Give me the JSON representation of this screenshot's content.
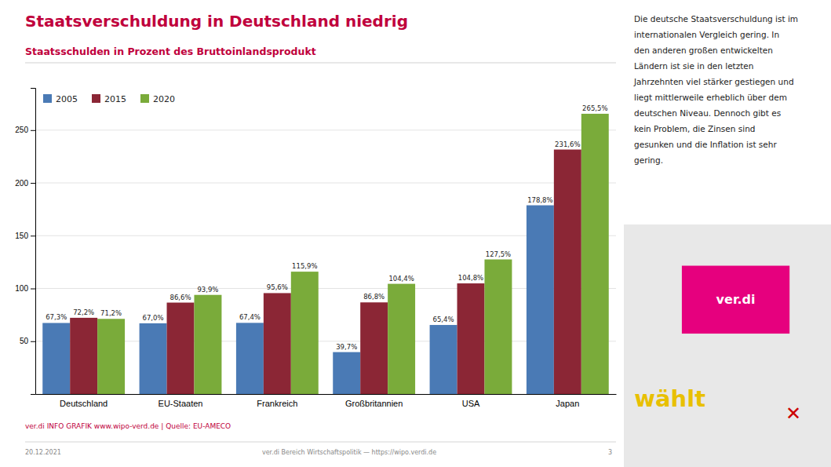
{
  "chart_data": {
    "type": "bar",
    "title": "Staatsverschuldung in Deutschland niedrig",
    "subtitle": "Staatsschulden in Prozent des Bruttoinlandsprodukt",
    "categories": [
      "Deutschland",
      "EU-Staaten",
      "Frankreich",
      "Großbritannien",
      "USA",
      "Japan"
    ],
    "series": [
      {
        "name": "2005",
        "color": "#4a7ab5",
        "values": [
          67.3,
          67.0,
          67.4,
          39.7,
          65.4,
          178.8
        ],
        "value_labels": [
          "67,3%",
          "67,0%",
          "67,4%",
          "39,7%",
          "65,4%",
          "178,8%"
        ]
      },
      {
        "name": "2015",
        "color": "#8b2635",
        "values": [
          72.2,
          86.6,
          95.6,
          86.8,
          104.8,
          231.6
        ],
        "value_labels": [
          "72,2%",
          "86,6%",
          "95,6%",
          "86,8%",
          "104,8%",
          "231,6%"
        ]
      },
      {
        "name": "2020",
        "color": "#7aab3a",
        "values": [
          71.2,
          93.9,
          115.9,
          104.4,
          127.5,
          265.5
        ],
        "value_labels": [
          "71,2%",
          "93,9%",
          "115,9%",
          "104,4%",
          "127,5%",
          "265,5%"
        ]
      }
    ],
    "ylim": [
      0,
      290
    ],
    "yticks": [
      50,
      100,
      150,
      200,
      250
    ],
    "grid": true,
    "legend": "upper left",
    "data_labels": true,
    "annotations": [
      "ver.di INFO GRAFIK www.wipo-verd.de | Quelle: EU-AMECO",
      "20.12.2021",
      "ver.di Bereich Wirtschaftspolitik — https://wipo.verdi.de",
      "3",
      "Die deutsche Staatsverschuldung ist im",
      "internationalen Vergleich gering. In",
      "den anderen großen entwickelten",
      "Ländern ist sie in den letzten",
      "Jahrzehnten viel stärker gestiegen und",
      "liegt mittlerweile erheblich über dem",
      "deutschen Niveau. Dennoch gibt es",
      "kein Problem, die Zinsen sind",
      "gesunken und die Inflation ist sehr",
      "gering.",
      "ver.di",
      "wählt",
      "✕"
    ]
  }
}
